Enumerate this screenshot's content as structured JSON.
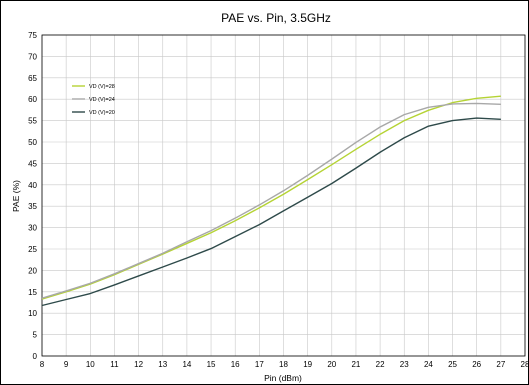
{
  "chart_data": {
    "type": "line",
    "title": "PAE  vs. Pin, 3.5GHz",
    "xlabel": "Pin (dBm)",
    "ylabel": "PAE (%)",
    "xlim": [
      8,
      28
    ],
    "ylim": [
      0,
      75
    ],
    "xticks": [
      8,
      9,
      10,
      11,
      12,
      13,
      14,
      15,
      16,
      17,
      18,
      19,
      20,
      21,
      22,
      23,
      24,
      25,
      26,
      27,
      28
    ],
    "yticks": [
      0,
      5,
      10,
      15,
      20,
      25,
      30,
      35,
      40,
      45,
      50,
      55,
      60,
      65,
      70,
      75
    ],
    "grid": true,
    "legend_position": "top-left",
    "series": [
      {
        "name": "VD (V)=28",
        "color": "#b5d334",
        "x": [
          8,
          9,
          10,
          11,
          12,
          13,
          14,
          15,
          16,
          17,
          18,
          19,
          20,
          21,
          22,
          23,
          24,
          25,
          26,
          27
        ],
        "y": [
          13.3,
          15.0,
          16.8,
          19.0,
          21.4,
          23.8,
          26.3,
          28.8,
          31.6,
          34.6,
          37.8,
          41.2,
          44.7,
          48.3,
          51.8,
          55.0,
          57.4,
          59.2,
          60.2,
          60.7
        ]
      },
      {
        "name": "VD (V)=24",
        "color": "#a8a8a8",
        "x": [
          8,
          9,
          10,
          11,
          12,
          13,
          14,
          15,
          16,
          17,
          18,
          19,
          20,
          21,
          22,
          23,
          24,
          25,
          26,
          27
        ],
        "y": [
          13.5,
          15.2,
          17.0,
          19.2,
          21.6,
          24.0,
          26.7,
          29.3,
          32.2,
          35.3,
          38.6,
          42.2,
          46.0,
          49.9,
          53.5,
          56.4,
          58.1,
          58.9,
          59.0,
          58.8
        ]
      },
      {
        "name": "VD (V)=20",
        "color": "#2e4a4a",
        "x": [
          8,
          9,
          10,
          11,
          12,
          13,
          14,
          15,
          16,
          17,
          18,
          19,
          20,
          21,
          22,
          23,
          24,
          25,
          26,
          27
        ],
        "y": [
          11.8,
          13.2,
          14.6,
          16.6,
          18.7,
          20.8,
          22.9,
          25.1,
          27.9,
          30.7,
          33.9,
          37.1,
          40.3,
          43.9,
          47.6,
          51.0,
          53.7,
          55.0,
          55.6,
          55.3
        ]
      }
    ]
  }
}
